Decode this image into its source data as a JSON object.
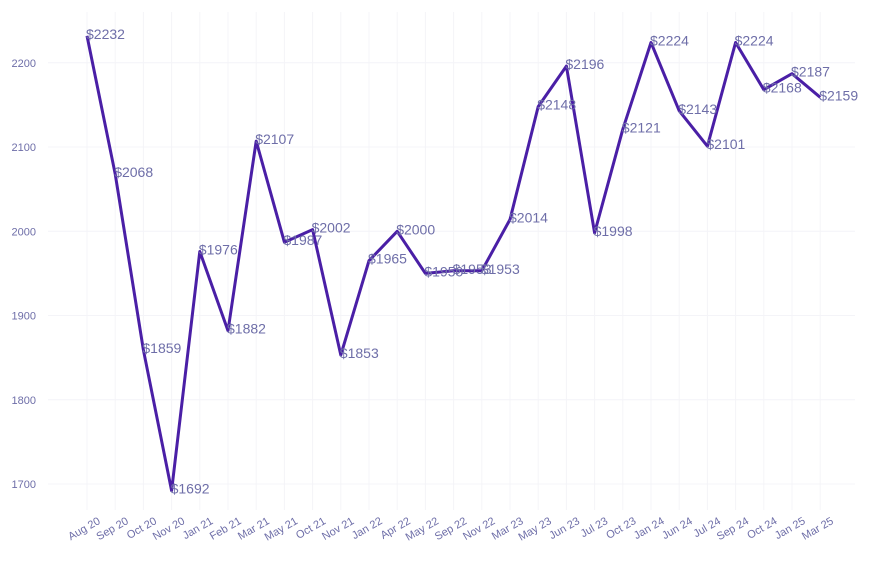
{
  "chart_data": {
    "type": "line",
    "title": "",
    "xlabel": "",
    "ylabel": "",
    "ylim": [
      1670,
      2240
    ],
    "y_ticks": [
      1700,
      1800,
      1900,
      2000,
      2100,
      2200
    ],
    "y_tick_labels": [
      "1700",
      "1800",
      "1900",
      "2000",
      "2100",
      "2200"
    ],
    "grid": true,
    "categories": [
      "Aug 20",
      "Sep 20",
      "Oct 20",
      "Nov 20",
      "Jan 21",
      "Feb 21",
      "Mar 21",
      "May 21",
      "Oct 21",
      "Nov 21",
      "Jan 22",
      "Apr 22",
      "May 22",
      "Sep 22",
      "Nov 22",
      "Mar 23",
      "May 23",
      "Jun 23",
      "Jul 23",
      "Oct 23",
      "Jan 24",
      "Jun 24",
      "Jul 24",
      "Sep 24",
      "Oct 24",
      "Jan 25",
      "Mar 25"
    ],
    "values": [
      2232,
      2068,
      1859,
      1692,
      1976,
      1882,
      2107,
      1987,
      2002,
      1853,
      1965,
      2000,
      1950,
      1953,
      1953,
      2014,
      2148,
      2196,
      1998,
      2121,
      2224,
      2143,
      2101,
      2224,
      2168,
      2187,
      2159
    ],
    "data_labels": [
      "$2232",
      "$2068",
      "$1859",
      "$1692",
      "$1976",
      "$1882",
      "$2107",
      "$1987",
      "$2002",
      "$1853",
      "$1965",
      "$2000",
      "$1950",
      "$1953",
      "$1953",
      "$2014",
      "$2148",
      "$2196",
      "$1998",
      "$2121",
      "$2224",
      "$2143",
      "$2101",
      "$2224",
      "$2168",
      "$2187",
      "$2159"
    ],
    "line_color": "#4a1fa6",
    "label_color": "#6e6ea8"
  }
}
